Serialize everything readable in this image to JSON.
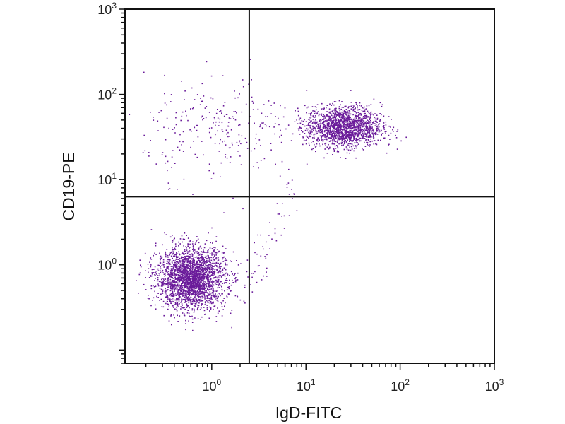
{
  "chart_data": {
    "type": "scatter",
    "title": "",
    "xlabel": "IgD-FITC",
    "ylabel": "CD19-PE",
    "x_scale": "log",
    "y_scale": "log",
    "xlim": [
      0.12,
      1000
    ],
    "ylim": [
      0.07,
      1000
    ],
    "x_ticks": [
      {
        "base": "10",
        "exp": "0",
        "value": 1
      },
      {
        "base": "10",
        "exp": "1",
        "value": 10
      },
      {
        "base": "10",
        "exp": "2",
        "value": 100
      },
      {
        "base": "10",
        "exp": "3",
        "value": 1000
      }
    ],
    "y_ticks": [
      {
        "base": "10",
        "exp": "0",
        "value": 1
      },
      {
        "base": "10",
        "exp": "1",
        "value": 10
      },
      {
        "base": "10",
        "exp": "2",
        "value": 100
      },
      {
        "base": "10",
        "exp": "3",
        "value": 1000
      }
    ],
    "quadrant_gates": {
      "x": 2.5,
      "y": 6.3
    },
    "point_color": "#6a1b9a",
    "populations": [
      {
        "name": "IgD-negative CD19-negative",
        "center_x": 0.6,
        "center_y": 0.7,
        "spread_x_decades": 0.18,
        "spread_y_decades": 0.18,
        "count": 2600
      },
      {
        "name": "IgD-positive CD19-positive",
        "center_x": 25,
        "center_y": 42,
        "spread_x_decades": 0.2,
        "spread_y_decades": 0.12,
        "count": 1700
      },
      {
        "name": "IgD-negative CD19-positive scatter",
        "center_x": 1.2,
        "center_y": 40,
        "spread_x_decades": 0.4,
        "spread_y_decades": 0.3,
        "count": 260
      },
      {
        "name": "transitional diagonal",
        "center_x": 3.5,
        "center_y": 4,
        "spread_x_decades": 0.15,
        "spread_y_decades": 0.25,
        "count": 60
      }
    ]
  }
}
